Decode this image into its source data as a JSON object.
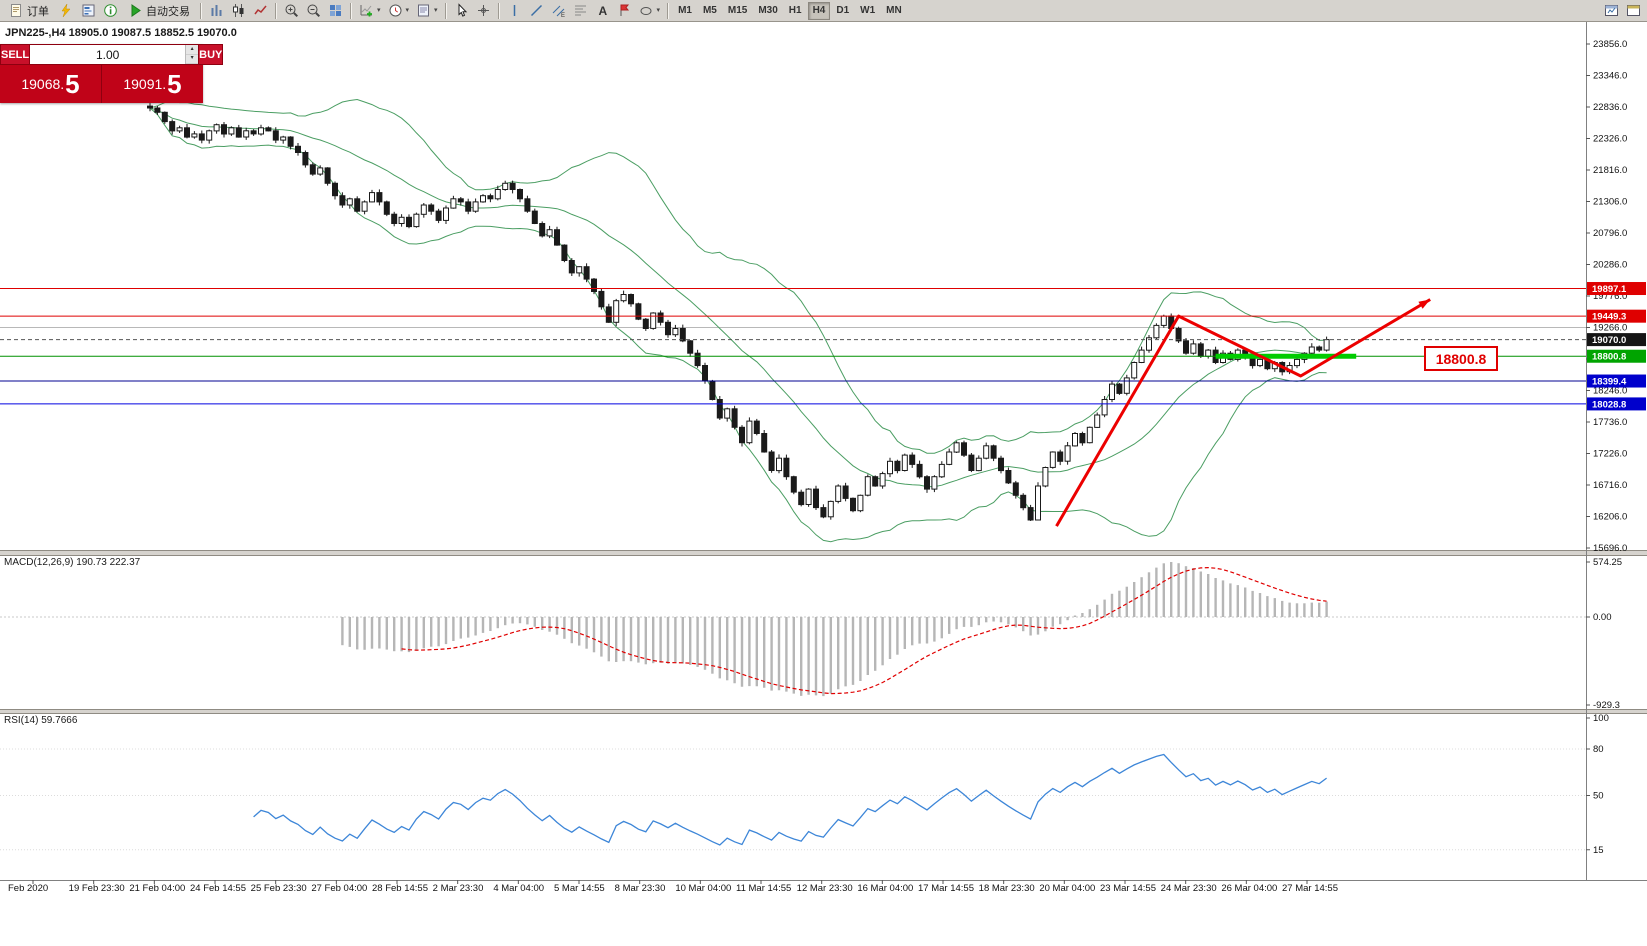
{
  "toolbar": {
    "order_label": "订单",
    "autotrade_label": "自动交易",
    "timeframes": [
      "M1",
      "M5",
      "M15",
      "M30",
      "H1",
      "H4",
      "D1",
      "W1",
      "MN"
    ],
    "active_timeframe": "H4"
  },
  "order_panel": {
    "sell_label": "SELL",
    "buy_label": "BUY",
    "volume": "1.00",
    "sell_price_int": "19068.",
    "sell_price_pip": "5",
    "buy_price_int": "19091.",
    "buy_price_pip": "5"
  },
  "chart": {
    "title": "JPN225-,H4 18905.0 19087.5 18852.5 19070.0"
  },
  "price_axis": {
    "labels": [
      "23856.0",
      "23346.0",
      "22836.0",
      "22326.0",
      "21816.0",
      "21306.0",
      "20796.0",
      "20286.0",
      "19776.0",
      "19266.0",
      "18756.0",
      "18246.0",
      "17736.0",
      "17226.0",
      "16716.0",
      "16206.0",
      "15696.0"
    ],
    "tags": [
      {
        "text": "19897.1",
        "price": 19897.1,
        "bg": "#df0000",
        "fg": "#ffffff"
      },
      {
        "text": "19449.3",
        "price": 19449.3,
        "bg": "#df0000",
        "fg": "#ffffff"
      },
      {
        "text": "19070.0",
        "price": 19070.0,
        "bg": "#151515",
        "fg": "#ffffff"
      },
      {
        "text": "18800.8",
        "price": 18800.8,
        "bg": "#00a400",
        "fg": "#ffffff"
      },
      {
        "text": "18399.4",
        "price": 18399.4,
        "bg": "#0000cc",
        "fg": "#ffffff"
      },
      {
        "text": "18028.8",
        "price": 18028.8,
        "bg": "#0000cc",
        "fg": "#ffffff"
      }
    ]
  },
  "macd": {
    "label": "MACD(12,26,9) 190.73 222.37",
    "scale": [
      "574.25",
      "0.00",
      "-929.3"
    ]
  },
  "rsi": {
    "label": "RSI(14) 59.7666",
    "scale": [
      "100",
      "80",
      "50",
      "15"
    ],
    "scale_values": [
      100,
      80,
      50,
      15
    ]
  },
  "time_axis": {
    "labels": [
      "Feb 2020",
      "19 Feb 23:30",
      "21 Feb 04:00",
      "24 Feb 14:55",
      "25 Feb 23:30",
      "27 Feb 04:00",
      "28 Feb 14:55",
      "2 Mar 23:30",
      "4 Mar 04:00",
      "5 Mar 14:55",
      "8 Mar 23:30",
      "10 Mar 04:00",
      "11 Mar 14:55",
      "12 Mar 23:30",
      "16 Mar 04:00",
      "17 Mar 14:55",
      "18 Mar 23:30",
      "20 Mar 04:00",
      "23 Mar 14:55",
      "24 Mar 23:30",
      "26 Mar 04:00",
      "27 Mar 14:55"
    ]
  },
  "chart_data": {
    "type": "candlestick",
    "symbol": "JPN225-",
    "timeframe": "H4",
    "ohlc_display": {
      "open": 18905.0,
      "high": 19087.5,
      "low": 18852.5,
      "close": 19070.0
    },
    "price_range": {
      "top": 23856.0,
      "bottom": 15696.0
    },
    "first_open": 22850,
    "closes": [
      22820,
      22750,
      22600,
      22450,
      22500,
      22350,
      22400,
      22300,
      22450,
      22550,
      22400,
      22500,
      22350,
      22450,
      22400,
      22500,
      22450,
      22300,
      22350,
      22200,
      22100,
      21900,
      21750,
      21850,
      21600,
      21400,
      21250,
      21350,
      21150,
      21300,
      21450,
      21300,
      21100,
      20950,
      21050,
      20900,
      21100,
      21250,
      21150,
      21000,
      21200,
      21350,
      21300,
      21150,
      21300,
      21400,
      21350,
      21500,
      21600,
      21500,
      21350,
      21150,
      20950,
      20750,
      20850,
      20600,
      20350,
      20150,
      20250,
      20050,
      19850,
      19600,
      19350,
      19700,
      19800,
      19650,
      19400,
      19250,
      19500,
      19350,
      19150,
      19250,
      19050,
      18850,
      18650,
      18400,
      18100,
      17800,
      17950,
      17650,
      17400,
      17750,
      17550,
      17250,
      16950,
      17150,
      16850,
      16600,
      16400,
      16650,
      16350,
      16200,
      16450,
      16700,
      16500,
      16300,
      16550,
      16850,
      16700,
      16900,
      17100,
      16950,
      17200,
      17050,
      16850,
      16650,
      16850,
      17050,
      17250,
      17400,
      17200,
      16950,
      17150,
      17350,
      17150,
      16950,
      16750,
      16550,
      16350,
      16150,
      16700,
      17000,
      17250,
      17100,
      17350,
      17550,
      17400,
      17650,
      17850,
      18100,
      18350,
      18200,
      18450,
      18700,
      18900,
      19100,
      19300,
      19450,
      19250,
      19050,
      18850,
      19000,
      18800,
      18900,
      18700,
      18850,
      18750,
      18900,
      18800,
      18650,
      18750,
      18600,
      18700,
      18550,
      18650,
      18750,
      18850,
      18950,
      18900,
      19070
    ],
    "indicators": {
      "bollinger": {
        "period": 20,
        "deviation": 2
      },
      "macd": {
        "fast": 12,
        "slow": 26,
        "signal": 9,
        "value": 190.73,
        "signal_value": 222.37
      },
      "rsi": {
        "period": 14,
        "value": 59.7666
      }
    },
    "horizontal_lines": [
      {
        "price": 19897.1,
        "color": "#df0000"
      },
      {
        "price": 19449.3,
        "color": "#df0000"
      },
      {
        "price": 19266.0,
        "color": "#b8b8b8"
      },
      {
        "price": 18800.8,
        "color": "#009000"
      },
      {
        "price": 18399.4,
        "color": "#000090"
      },
      {
        "price": 18028.8,
        "color": "#0000e0"
      }
    ],
    "current_price": 19070.0,
    "support_segment": {
      "price": 18800.8,
      "from_bar": 144,
      "to_bar": 163,
      "color": "#00cc00"
    },
    "trend_arrow": {
      "color": "#ec0000",
      "points": [
        {
          "bar": 122.5,
          "price": 16050
        },
        {
          "bar": 139,
          "price": 19450
        },
        {
          "bar": 155.5,
          "price": 18480
        },
        {
          "bar": 173,
          "price": 19720
        }
      ]
    },
    "price_callout": {
      "text": "18800.8",
      "price": 18800.8
    }
  }
}
